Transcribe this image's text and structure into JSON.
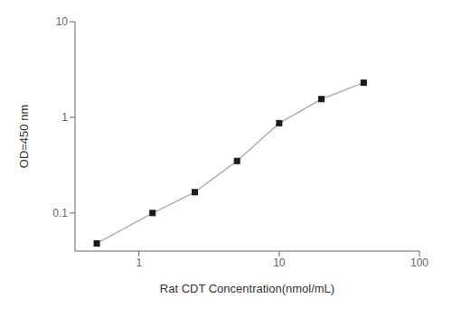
{
  "chart_data": {
    "type": "line",
    "x": [
      0.5,
      1.25,
      2.5,
      5.0,
      10.0,
      20.0,
      40.0
    ],
    "values": [
      0.048,
      0.1,
      0.165,
      0.35,
      0.87,
      1.55,
      2.3
    ],
    "xlabel": "Rat CDT Concentration(nmol/mL)",
    "ylabel": "OD=450 nm",
    "xlim": [
      0.35,
      100
    ],
    "ylim": [
      0.04,
      10
    ],
    "xticks": [
      1,
      10,
      100
    ],
    "yticks": [
      0.1,
      1,
      10
    ],
    "log": true,
    "color": "#b0b0b0",
    "marker": "square"
  }
}
